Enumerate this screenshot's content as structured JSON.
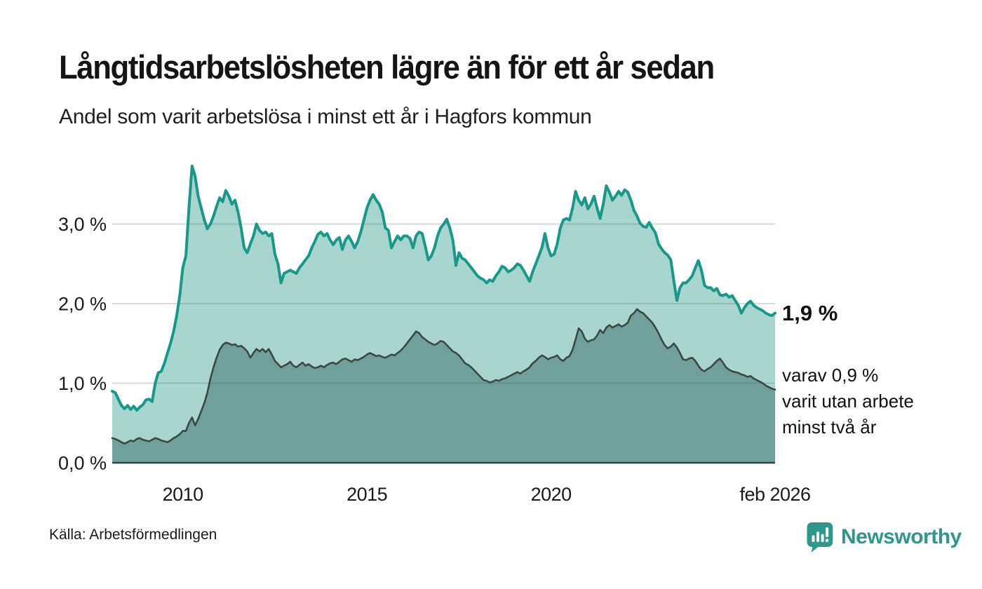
{
  "header": {
    "title": "Långtidsarbetslösheten lägre än för ett år sedan",
    "subtitle": "Andel som varit arbetslösa i minst ett år i Hagfors kommun"
  },
  "annotations": {
    "total_end": "1,9 %",
    "subset_end_lines": [
      "varav 0,9 %",
      "varit utan arbete",
      "minst två år"
    ]
  },
  "source": {
    "label": "Källa: Arbetsförmedlingen"
  },
  "logo": {
    "text": "Newsworthy",
    "color": "#2f968c",
    "icon": "speech-bubble-bar-chart"
  },
  "chart_data": {
    "type": "area",
    "title": "Långtidsarbetslösheten lägre än för ett år sedan",
    "subtitle": "Andel som varit arbetslösa i minst ett år i Hagfors kommun",
    "xlabel": "",
    "ylabel": "",
    "x_unit": "month",
    "x_start": "feb 2008",
    "x_end": "feb 2026",
    "xlim": [
      2008.0833,
      2026.0833
    ],
    "ylim": [
      0,
      3.9
    ],
    "grid": "horizontal",
    "colors": {
      "line_total": "#17998a",
      "fill_total": "#a8d6ce",
      "line_subset": "#3a4847",
      "fill_subset": "#6fa09a",
      "gridline": "rgba(70,90,95,0.22)",
      "axis": "#37464a",
      "text": "#1a1a1a"
    },
    "y_ticks": [
      {
        "value": 0,
        "label": "0,0 %"
      },
      {
        "value": 1,
        "label": "1,0 %"
      },
      {
        "value": 2,
        "label": "2,0 %"
      },
      {
        "value": 3,
        "label": "3,0 %"
      }
    ],
    "x_ticks": [
      {
        "value": 2010,
        "label": "2010"
      },
      {
        "value": 2015,
        "label": "2015"
      },
      {
        "value": 2020,
        "label": "2020"
      },
      {
        "value": 2026.0833,
        "label": "feb 2026"
      }
    ],
    "series": [
      {
        "name": "Andel som varit arbetslösa i minst ett år",
        "end_label": "1,9 %",
        "end_value": 1.9,
        "values": [
          0.9,
          0.88,
          0.8,
          0.72,
          0.68,
          0.72,
          0.67,
          0.71,
          0.66,
          0.7,
          0.73,
          0.79,
          0.8,
          0.77,
          1.0,
          1.13,
          1.15,
          1.25,
          1.38,
          1.5,
          1.65,
          1.85,
          2.1,
          2.45,
          2.6,
          3.2,
          3.73,
          3.6,
          3.35,
          3.2,
          3.05,
          2.94,
          3.0,
          3.1,
          3.22,
          3.33,
          3.28,
          3.42,
          3.35,
          3.25,
          3.3,
          3.15,
          2.95,
          2.7,
          2.64,
          2.75,
          2.85,
          3.0,
          2.92,
          2.88,
          2.9,
          2.85,
          2.88,
          2.62,
          2.5,
          2.26,
          2.38,
          2.4,
          2.42,
          2.4,
          2.38,
          2.45,
          2.5,
          2.55,
          2.6,
          2.7,
          2.78,
          2.87,
          2.9,
          2.85,
          2.88,
          2.8,
          2.74,
          2.8,
          2.83,
          2.68,
          2.8,
          2.85,
          2.78,
          2.7,
          2.78,
          2.9,
          3.05,
          3.2,
          3.3,
          3.37,
          3.3,
          3.25,
          3.15,
          2.95,
          2.92,
          2.7,
          2.78,
          2.85,
          2.8,
          2.85,
          2.85,
          2.82,
          2.7,
          2.85,
          2.9,
          2.88,
          2.72,
          2.55,
          2.6,
          2.7,
          2.85,
          2.95,
          3.0,
          3.06,
          2.95,
          2.8,
          2.48,
          2.64,
          2.57,
          2.55,
          2.5,
          2.45,
          2.4,
          2.35,
          2.32,
          2.3,
          2.26,
          2.3,
          2.28,
          2.35,
          2.4,
          2.47,
          2.45,
          2.4,
          2.42,
          2.45,
          2.5,
          2.48,
          2.42,
          2.35,
          2.28,
          2.4,
          2.5,
          2.6,
          2.7,
          2.88,
          2.7,
          2.6,
          2.62,
          2.75,
          2.95,
          3.05,
          3.07,
          3.05,
          3.2,
          3.41,
          3.3,
          3.24,
          3.33,
          3.19,
          3.25,
          3.35,
          3.2,
          3.07,
          3.25,
          3.48,
          3.4,
          3.3,
          3.35,
          3.41,
          3.36,
          3.43,
          3.4,
          3.3,
          3.17,
          3.1,
          3.01,
          2.97,
          2.96,
          3.02,
          2.95,
          2.89,
          2.75,
          2.69,
          2.64,
          2.61,
          2.55,
          2.29,
          2.04,
          2.2,
          2.26,
          2.26,
          2.3,
          2.35,
          2.45,
          2.54,
          2.42,
          2.23,
          2.2,
          2.2,
          2.16,
          2.19,
          2.11,
          2.1,
          2.12,
          2.08,
          2.1,
          2.04,
          1.98,
          1.88,
          1.95,
          2.0,
          2.03,
          1.98,
          1.95,
          1.93,
          1.91,
          1.88,
          1.86,
          1.85,
          1.88
        ]
      },
      {
        "name": "varav utan arbete minst två år",
        "end_label": "varav 0,9 % varit utan arbete minst två år",
        "end_value": 0.9,
        "values": [
          0.31,
          0.3,
          0.28,
          0.26,
          0.24,
          0.26,
          0.28,
          0.27,
          0.3,
          0.31,
          0.29,
          0.28,
          0.27,
          0.29,
          0.31,
          0.3,
          0.28,
          0.27,
          0.26,
          0.28,
          0.31,
          0.33,
          0.36,
          0.4,
          0.4,
          0.5,
          0.57,
          0.47,
          0.55,
          0.65,
          0.75,
          0.88,
          1.06,
          1.2,
          1.32,
          1.42,
          1.48,
          1.51,
          1.5,
          1.48,
          1.49,
          1.46,
          1.47,
          1.44,
          1.4,
          1.32,
          1.38,
          1.43,
          1.4,
          1.43,
          1.39,
          1.43,
          1.36,
          1.28,
          1.24,
          1.2,
          1.22,
          1.24,
          1.27,
          1.22,
          1.2,
          1.23,
          1.26,
          1.22,
          1.24,
          1.21,
          1.19,
          1.2,
          1.22,
          1.2,
          1.23,
          1.25,
          1.26,
          1.24,
          1.27,
          1.3,
          1.31,
          1.29,
          1.27,
          1.3,
          1.29,
          1.31,
          1.33,
          1.36,
          1.38,
          1.36,
          1.34,
          1.35,
          1.33,
          1.32,
          1.34,
          1.36,
          1.35,
          1.38,
          1.41,
          1.45,
          1.5,
          1.55,
          1.6,
          1.65,
          1.63,
          1.58,
          1.55,
          1.52,
          1.5,
          1.48,
          1.5,
          1.53,
          1.52,
          1.48,
          1.44,
          1.4,
          1.38,
          1.35,
          1.3,
          1.25,
          1.23,
          1.2,
          1.16,
          1.12,
          1.08,
          1.04,
          1.03,
          1.01,
          1.02,
          1.04,
          1.03,
          1.05,
          1.06,
          1.08,
          1.1,
          1.12,
          1.14,
          1.12,
          1.15,
          1.17,
          1.2,
          1.25,
          1.28,
          1.32,
          1.35,
          1.33,
          1.3,
          1.32,
          1.33,
          1.35,
          1.3,
          1.28,
          1.32,
          1.34,
          1.42,
          1.55,
          1.69,
          1.65,
          1.56,
          1.52,
          1.54,
          1.55,
          1.6,
          1.67,
          1.63,
          1.7,
          1.73,
          1.7,
          1.72,
          1.74,
          1.71,
          1.73,
          1.76,
          1.85,
          1.88,
          1.93,
          1.9,
          1.88,
          1.84,
          1.8,
          1.76,
          1.7,
          1.63,
          1.55,
          1.48,
          1.44,
          1.46,
          1.5,
          1.45,
          1.38,
          1.3,
          1.29,
          1.31,
          1.32,
          1.28,
          1.22,
          1.17,
          1.15,
          1.18,
          1.2,
          1.24,
          1.28,
          1.31,
          1.26,
          1.2,
          1.17,
          1.15,
          1.14,
          1.13,
          1.11,
          1.1,
          1.08,
          1.09,
          1.06,
          1.04,
          1.02,
          1.0,
          0.97,
          0.95,
          0.93,
          0.92
        ]
      }
    ]
  }
}
